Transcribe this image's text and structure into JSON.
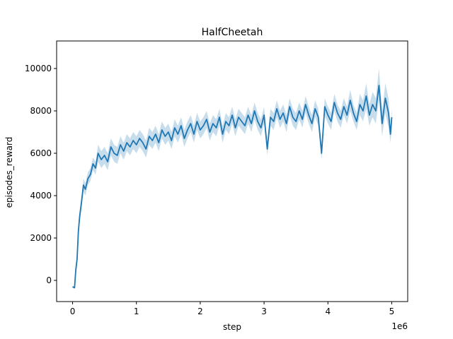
{
  "chart_data": {
    "type": "line",
    "title": "HalfCheetah",
    "xlabel": "step",
    "ylabel": "episodes_reward",
    "x_offset_label": "1e6",
    "xlim": [
      -0.25,
      5.25
    ],
    "ylim": [
      -1000,
      11300
    ],
    "x_ticks": [
      0,
      1,
      2,
      3,
      4,
      5
    ],
    "x_tick_labels": [
      "0",
      "1",
      "2",
      "3",
      "4",
      "5"
    ],
    "y_ticks": [
      0,
      2000,
      4000,
      6000,
      8000,
      10000
    ],
    "y_tick_labels": [
      "0",
      "2000",
      "4000",
      "6000",
      "8000",
      "10000"
    ],
    "grid": false,
    "legend": "none",
    "line_color": "#1f77b4",
    "band_color": "#1f77b4",
    "series": [
      {
        "x": [
          0.0,
          0.03,
          0.05,
          0.07,
          0.09,
          0.11,
          0.14,
          0.17,
          0.2,
          0.24,
          0.28,
          0.32,
          0.36,
          0.4,
          0.45,
          0.5,
          0.55,
          0.6,
          0.65,
          0.7,
          0.75,
          0.8,
          0.85,
          0.9,
          0.95,
          1.0,
          1.05,
          1.1,
          1.15,
          1.2,
          1.25,
          1.3,
          1.35,
          1.4,
          1.45,
          1.5,
          1.55,
          1.6,
          1.65,
          1.7,
          1.75,
          1.8,
          1.85,
          1.9,
          1.95,
          2.0,
          2.05,
          2.1,
          2.15,
          2.2,
          2.25,
          2.3,
          2.35,
          2.4,
          2.45,
          2.5,
          2.55,
          2.6,
          2.65,
          2.7,
          2.75,
          2.8,
          2.85,
          2.9,
          2.95,
          3.0,
          3.05,
          3.1,
          3.15,
          3.2,
          3.25,
          3.3,
          3.35,
          3.4,
          3.45,
          3.5,
          3.55,
          3.6,
          3.65,
          3.7,
          3.75,
          3.8,
          3.85,
          3.9,
          3.95,
          4.0,
          4.05,
          4.1,
          4.15,
          4.2,
          4.25,
          4.3,
          4.35,
          4.4,
          4.45,
          4.5,
          4.55,
          4.6,
          4.65,
          4.7,
          4.75,
          4.8,
          4.85,
          4.9,
          4.95,
          4.98,
          5.0
        ],
        "y": [
          -300,
          -350,
          500,
          1000,
          2300,
          3000,
          3700,
          4500,
          4300,
          4800,
          5000,
          5500,
          5300,
          6000,
          5700,
          5900,
          5600,
          6300,
          6000,
          5900,
          6400,
          6100,
          6500,
          6300,
          6600,
          6400,
          6700,
          6500,
          6200,
          6800,
          6600,
          6900,
          6500,
          7100,
          6800,
          7000,
          6600,
          7200,
          6900,
          7300,
          6700,
          7100,
          7400,
          6900,
          7500,
          7100,
          7300,
          7600,
          7000,
          7400,
          7200,
          7700,
          6900,
          7500,
          7300,
          7800,
          7200,
          7700,
          7500,
          7300,
          7800,
          7400,
          8000,
          7500,
          7200,
          7800,
          6200,
          7700,
          7500,
          8100,
          7600,
          7900,
          7400,
          8200,
          7700,
          7500,
          8000,
          7600,
          8300,
          7800,
          7400,
          8100,
          7700,
          6000,
          8200,
          7800,
          7500,
          8400,
          7900,
          7600,
          8200,
          7800,
          8500,
          7900,
          7500,
          8300,
          8000,
          8700,
          7800,
          8300,
          8000,
          9200,
          7400,
          8600,
          7900,
          6900,
          7700
        ],
        "y_lower": [
          -350,
          -400,
          300,
          700,
          2000,
          2700,
          3400,
          4200,
          4000,
          4500,
          4700,
          5200,
          5000,
          5600,
          5300,
          5500,
          5200,
          5900,
          5600,
          5500,
          6000,
          5700,
          6100,
          5900,
          6200,
          6000,
          6300,
          6100,
          5800,
          6400,
          6200,
          6500,
          6100,
          6700,
          6400,
          6600,
          6200,
          6800,
          6500,
          6900,
          6300,
          6700,
          7000,
          6500,
          7100,
          6700,
          6900,
          7200,
          6600,
          7000,
          6800,
          7300,
          6500,
          7100,
          6900,
          7400,
          6800,
          7300,
          7100,
          6900,
          7400,
          7000,
          7600,
          7100,
          6800,
          7400,
          5900,
          7300,
          7100,
          7700,
          7200,
          7500,
          7000,
          7800,
          7300,
          7100,
          7600,
          7200,
          7900,
          7400,
          7000,
          7700,
          7300,
          5700,
          7800,
          7400,
          7100,
          8000,
          7500,
          7200,
          7800,
          7400,
          8000,
          7500,
          7100,
          7800,
          7500,
          8100,
          7300,
          7700,
          7400,
          8500,
          6800,
          7900,
          7200,
          6500,
          7300
        ],
        "y_upper": [
          -250,
          -300,
          700,
          1300,
          2600,
          3300,
          4000,
          4800,
          4600,
          5100,
          5300,
          5800,
          5600,
          6400,
          6100,
          6300,
          6000,
          6700,
          6400,
          6300,
          6800,
          6500,
          6900,
          6700,
          7000,
          6800,
          7100,
          6900,
          6600,
          7200,
          7000,
          7300,
          6900,
          7500,
          7200,
          7400,
          7000,
          7600,
          7300,
          7700,
          7100,
          7500,
          7800,
          7300,
          7900,
          7500,
          7700,
          8000,
          7400,
          7800,
          7600,
          8100,
          7300,
          7900,
          7700,
          8200,
          7600,
          8100,
          7900,
          7700,
          8200,
          7800,
          8400,
          7900,
          7600,
          8200,
          6500,
          8100,
          7900,
          8500,
          8000,
          8300,
          7800,
          8600,
          8100,
          7900,
          8400,
          8000,
          8700,
          8200,
          7800,
          8500,
          8100,
          6300,
          8600,
          8200,
          7900,
          8800,
          8300,
          8000,
          8600,
          8200,
          9000,
          8300,
          7900,
          8800,
          8500,
          9300,
          8300,
          8900,
          8600,
          10000,
          8000,
          9300,
          8600,
          7300,
          8100
        ]
      }
    ]
  }
}
